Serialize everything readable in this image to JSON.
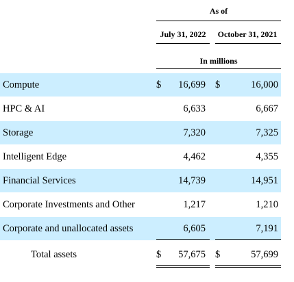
{
  "table": {
    "title": "As of",
    "columns": [
      "July 31, 2022",
      "October 31, 2021"
    ],
    "units": "In millions",
    "rows": [
      {
        "label": "Compute",
        "shaded": true,
        "cells": [
          {
            "symbol": "$",
            "value": "16,699"
          },
          {
            "symbol": "$",
            "value": "16,000"
          }
        ]
      },
      {
        "label": "HPC & AI",
        "shaded": false,
        "cells": [
          {
            "value": "6,633"
          },
          {
            "value": "6,667"
          }
        ]
      },
      {
        "label": "Storage",
        "shaded": true,
        "cells": [
          {
            "value": "7,320"
          },
          {
            "value": "7,325"
          }
        ]
      },
      {
        "label": "Intelligent Edge",
        "shaded": false,
        "cells": [
          {
            "value": "4,462"
          },
          {
            "value": "4,355"
          }
        ]
      },
      {
        "label": "Financial Services",
        "shaded": true,
        "cells": [
          {
            "value": "14,739"
          },
          {
            "value": "14,951"
          }
        ]
      },
      {
        "label": "Corporate Investments and Other",
        "shaded": false,
        "cells": [
          {
            "value": "1,217"
          },
          {
            "value": "1,210"
          }
        ]
      },
      {
        "label": "Corporate and unallocated assets",
        "shaded": true,
        "cells": [
          {
            "value": "6,605"
          },
          {
            "value": "7,191"
          }
        ]
      }
    ],
    "total": {
      "label": "Total assets",
      "cells": [
        {
          "symbol": "$",
          "value": "57,675"
        },
        {
          "symbol": "$",
          "value": "57,699"
        }
      ]
    }
  }
}
